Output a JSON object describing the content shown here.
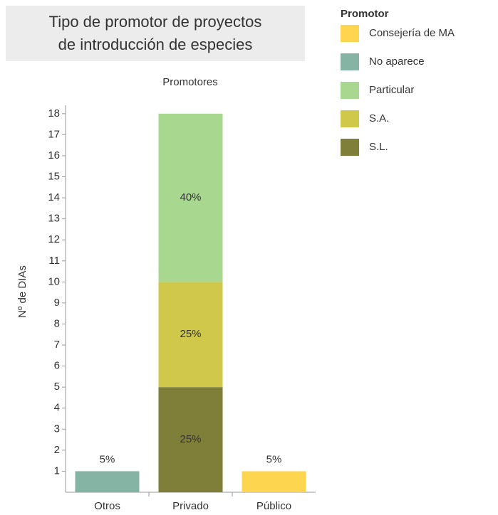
{
  "chart_data": {
    "type": "stacked_bar",
    "title": [
      "Tipo de promotor de proyectos",
      "de introducción de especies"
    ],
    "x_header": "Promotores",
    "y_label": "Nº de DIAs",
    "legend_title": "Promotor",
    "categories": [
      "Otros",
      "Privado",
      "Público"
    ],
    "series": [
      {
        "name": "Consejería de MA",
        "color": "#fdd54f",
        "values": [
          null,
          null,
          1
        ],
        "share_labels": [
          null,
          null,
          "5%"
        ]
      },
      {
        "name": "No aparece",
        "color": "#86b4a4",
        "values": [
          1,
          null,
          null
        ],
        "share_labels": [
          "5%",
          null,
          null
        ]
      },
      {
        "name": "Particular",
        "color": "#a8d890",
        "values": [
          null,
          8,
          null
        ],
        "share_labels": [
          null,
          "40%",
          null
        ]
      },
      {
        "name": "S.A.",
        "color": "#cfc84a",
        "values": [
          null,
          5,
          null
        ],
        "share_labels": [
          null,
          "25%",
          null
        ]
      },
      {
        "name": "S.L.",
        "color": "#7f7f3a",
        "values": [
          null,
          5,
          null
        ],
        "share_labels": [
          null,
          "25%",
          null
        ]
      }
    ],
    "stack_order": [
      "S.L.",
      "S.A.",
      "Particular",
      "No aparece",
      "Consejería de MA"
    ],
    "ylim": [
      0,
      18.4
    ],
    "yticks": [
      1,
      2,
      3,
      4,
      5,
      6,
      7,
      8,
      9,
      10,
      11,
      12,
      13,
      14,
      15,
      16,
      17,
      18
    ],
    "legend": "right"
  }
}
